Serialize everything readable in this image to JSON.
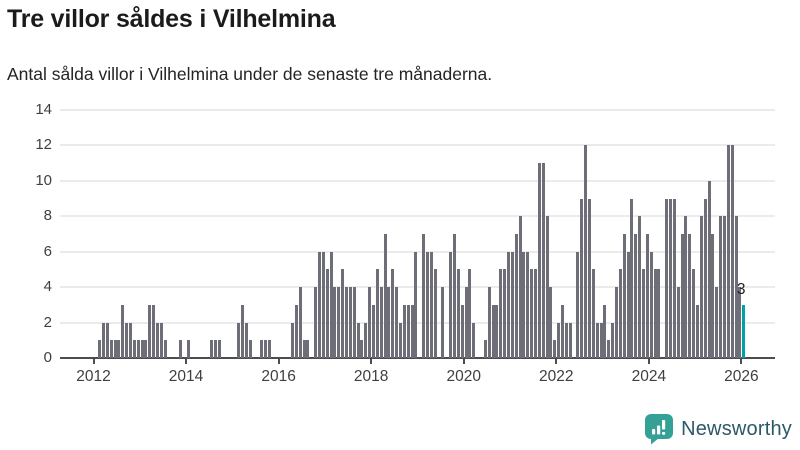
{
  "header": {
    "title": "Tre villor såldes i Vilhelmina",
    "subtitle": "Antal sålda villor i Vilhelmina under de senaste tre månaderna."
  },
  "chart_data": {
    "type": "bar",
    "title": "Tre villor såldes i Vilhelmina",
    "subtitle": "Antal sålda villor i Vilhelmina under de senaste tre månaderna.",
    "x_start": "2012-01",
    "x_end": "2026-01",
    "frequency": "monthly",
    "values": [
      0,
      1,
      2,
      2,
      1,
      1,
      1,
      3,
      2,
      2,
      1,
      1,
      1,
      1,
      3,
      3,
      2,
      2,
      1,
      0,
      0,
      0,
      1,
      0,
      1,
      0,
      0,
      0,
      0,
      0,
      1,
      1,
      1,
      0,
      0,
      0,
      0,
      2,
      3,
      2,
      1,
      0,
      0,
      1,
      1,
      1,
      0,
      0,
      0,
      0,
      0,
      2,
      3,
      4,
      1,
      1,
      0,
      4,
      6,
      6,
      5,
      6,
      4,
      4,
      5,
      4,
      4,
      4,
      2,
      1,
      2,
      4,
      3,
      5,
      4,
      7,
      4,
      5,
      4,
      2,
      3,
      3,
      3,
      6,
      0,
      7,
      6,
      6,
      5,
      0,
      4,
      0,
      6,
      7,
      5,
      3,
      4,
      5,
      2,
      0,
      0,
      1,
      4,
      3,
      3,
      5,
      5,
      6,
      6,
      7,
      8,
      6,
      6,
      5,
      5,
      11,
      11,
      8,
      4,
      1,
      2,
      3,
      2,
      2,
      0,
      6,
      9,
      12,
      9,
      5,
      2,
      2,
      3,
      1,
      2,
      4,
      5,
      7,
      6,
      9,
      7,
      8,
      5,
      7,
      6,
      5,
      5,
      0,
      9,
      9,
      9,
      4,
      7,
      8,
      7,
      5,
      3,
      8,
      9,
      10,
      7,
      4,
      8,
      8,
      12,
      12,
      8,
      4,
      3
    ],
    "highlight": {
      "index": 168,
      "value": 3,
      "label": "3",
      "color": "#00a1a6"
    },
    "bar_color": "#6e6e78",
    "ylim": [
      0,
      14
    ],
    "yticks": [
      0,
      2,
      4,
      6,
      8,
      10,
      12,
      14
    ],
    "xticks": [
      "2012",
      "2014",
      "2016",
      "2018",
      "2020",
      "2022",
      "2024",
      "2026"
    ],
    "grid": "horizontal",
    "legend": "none"
  },
  "footer": {
    "brand": "Newsworthy",
    "brand_color": "#2c5868",
    "icon_color": "#35a096",
    "icon": "newsworthy-bars-icon"
  }
}
